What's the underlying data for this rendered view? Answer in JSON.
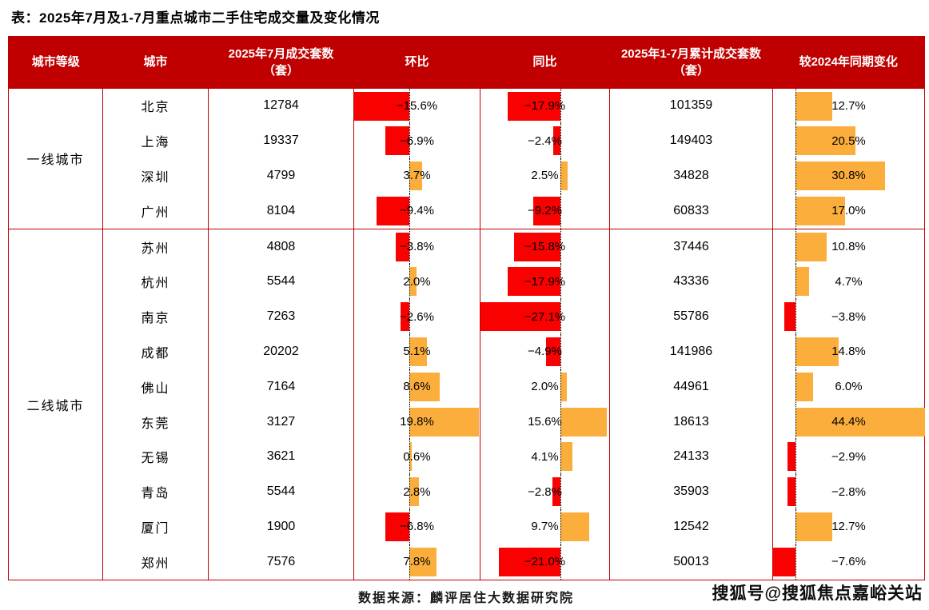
{
  "title": "表：2025年7月及1-7月重点城市二手住宅成交量及变化情况",
  "source": "数据来源：麟评居住大数据研究院",
  "watermark": "搜狐号@搜狐焦点嘉峪关站",
  "colors": {
    "header_bg": "#c00000",
    "border": "#c00000",
    "negative_bar": "#fa0101",
    "positive_bar": "#fbae3c",
    "header_text": "#ffffff",
    "body_text": "#000000"
  },
  "chart_data": {
    "type": "table",
    "title": "2025年7月及1-7月重点城市二手住宅成交量及变化情况",
    "columns": [
      {
        "key": "tier",
        "label": "城市等级"
      },
      {
        "key": "city",
        "label": "城市"
      },
      {
        "key": "jul_sales",
        "label": "2025年7月成交套数（套）"
      },
      {
        "key": "mom",
        "label": "环比"
      },
      {
        "key": "yoy",
        "label": "同比"
      },
      {
        "key": "cum_sales",
        "label": "2025年1-7月累计成交套数（套）"
      },
      {
        "key": "cum_change",
        "label": "较2024年同期变化"
      }
    ],
    "bar_ranges": {
      "mom": [
        -15.7,
        20.2
      ],
      "yoy": [
        -27.1,
        16.7
      ],
      "cum_change": [
        -7.7,
        44.4
      ]
    },
    "tiers": [
      {
        "tier": "一线城市",
        "rows": [
          {
            "city": "北京",
            "jul_sales": 12784,
            "mom": -15.6,
            "yoy": -17.9,
            "cum_sales": 101359,
            "cum_change": 12.7
          },
          {
            "city": "上海",
            "jul_sales": 19337,
            "mom": -6.9,
            "yoy": -2.4,
            "cum_sales": 149403,
            "cum_change": 20.5
          },
          {
            "city": "深圳",
            "jul_sales": 4799,
            "mom": 3.7,
            "yoy": 2.5,
            "cum_sales": 34828,
            "cum_change": 30.8
          },
          {
            "city": "广州",
            "jul_sales": 8104,
            "mom": -9.4,
            "yoy": -9.2,
            "cum_sales": 60833,
            "cum_change": 17.0
          }
        ]
      },
      {
        "tier": "二线城市",
        "rows": [
          {
            "city": "苏州",
            "jul_sales": 4808,
            "mom": -3.8,
            "yoy": -15.8,
            "cum_sales": 37446,
            "cum_change": 10.8
          },
          {
            "city": "杭州",
            "jul_sales": 5544,
            "mom": 2.0,
            "yoy": -17.9,
            "cum_sales": 43336,
            "cum_change": 4.7
          },
          {
            "city": "南京",
            "jul_sales": 7263,
            "mom": -2.6,
            "yoy": -27.1,
            "cum_sales": 55786,
            "cum_change": -3.8
          },
          {
            "city": "成都",
            "jul_sales": 20202,
            "mom": 5.1,
            "yoy": -4.9,
            "cum_sales": 141986,
            "cum_change": 14.8
          },
          {
            "city": "佛山",
            "jul_sales": 7164,
            "mom": 8.6,
            "yoy": 2.0,
            "cum_sales": 44961,
            "cum_change": 6.0
          },
          {
            "city": "东莞",
            "jul_sales": 3127,
            "mom": 19.8,
            "yoy": 15.6,
            "cum_sales": 18613,
            "cum_change": 44.4
          },
          {
            "city": "无锡",
            "jul_sales": 3621,
            "mom": 0.6,
            "yoy": 4.1,
            "cum_sales": 24133,
            "cum_change": -2.9
          },
          {
            "city": "青岛",
            "jul_sales": 5544,
            "mom": 2.8,
            "yoy": -2.8,
            "cum_sales": 35903,
            "cum_change": -2.8
          },
          {
            "city": "厦门",
            "jul_sales": 1900,
            "mom": -6.8,
            "yoy": 9.7,
            "cum_sales": 12542,
            "cum_change": 12.7
          },
          {
            "city": "郑州",
            "jul_sales": 7576,
            "mom": 7.8,
            "yoy": -21.0,
            "cum_sales": 50013,
            "cum_change": -7.6
          }
        ]
      }
    ]
  }
}
